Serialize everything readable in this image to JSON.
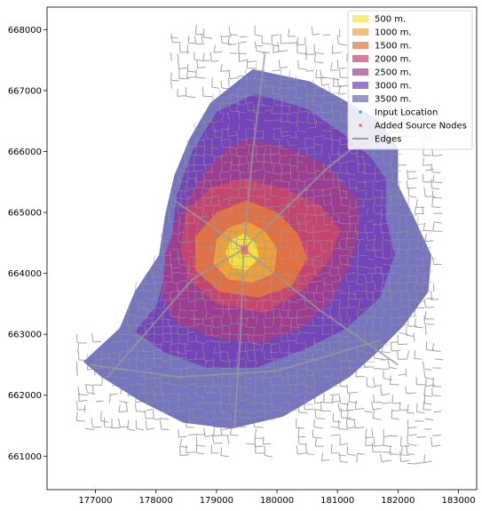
{
  "chart_data": {
    "type": "map",
    "title": "",
    "xlabel": "",
    "ylabel": "",
    "xlim": [
      176200,
      183300
    ],
    "ylim": [
      660450,
      668370
    ],
    "xticks": [
      177000,
      178000,
      179000,
      180000,
      181000,
      182000,
      183000
    ],
    "yticks": [
      661000,
      662000,
      663000,
      664000,
      665000,
      666000,
      667000,
      668000
    ],
    "grid": false,
    "legend_position": "top-right",
    "input_location": {
      "x": 179450,
      "y": 664400,
      "color": "#17becf"
    },
    "isochrones": [
      {
        "name": "3500 m.",
        "color": "#6a6ab8",
        "polygon": [
          [
            179600,
            667350
          ],
          [
            180550,
            667150
          ],
          [
            181100,
            666850
          ],
          [
            181700,
            666500
          ],
          [
            182000,
            666050
          ],
          [
            182000,
            665450
          ],
          [
            182250,
            664950
          ],
          [
            182550,
            664300
          ],
          [
            182500,
            663700
          ],
          [
            182100,
            663150
          ],
          [
            181650,
            662700
          ],
          [
            181200,
            662300
          ],
          [
            180700,
            662000
          ],
          [
            180100,
            661650
          ],
          [
            179250,
            661450
          ],
          [
            178450,
            661550
          ],
          [
            177750,
            661900
          ],
          [
            177100,
            662300
          ],
          [
            176800,
            662550
          ],
          [
            177400,
            663100
          ],
          [
            177650,
            663700
          ],
          [
            178050,
            664300
          ],
          [
            178150,
            664950
          ],
          [
            178300,
            665600
          ],
          [
            178550,
            666200
          ],
          [
            178900,
            666800
          ]
        ]
      },
      {
        "name": "3000 m.",
        "color": "#7440b8",
        "polygon": [
          [
            179650,
            666950
          ],
          [
            180500,
            666700
          ],
          [
            181150,
            666250
          ],
          [
            181550,
            665900
          ],
          [
            181800,
            665550
          ],
          [
            181800,
            664900
          ],
          [
            181950,
            664300
          ],
          [
            181700,
            663600
          ],
          [
            181150,
            663100
          ],
          [
            180450,
            662750
          ],
          [
            179650,
            662450
          ],
          [
            178850,
            662450
          ],
          [
            178150,
            662700
          ],
          [
            177650,
            663050
          ],
          [
            178000,
            663450
          ],
          [
            178150,
            663950
          ],
          [
            178250,
            664550
          ],
          [
            178350,
            665300
          ],
          [
            178600,
            666000
          ],
          [
            179000,
            666650
          ]
        ]
      },
      {
        "name": "2500 m.",
        "color": "#a13d8e",
        "polygon": [
          [
            179500,
            666200
          ],
          [
            180250,
            666050
          ],
          [
            180850,
            665750
          ],
          [
            181350,
            665200
          ],
          [
            181350,
            664650
          ],
          [
            181200,
            664100
          ],
          [
            180900,
            663550
          ],
          [
            180400,
            663100
          ],
          [
            179700,
            662850
          ],
          [
            178950,
            662950
          ],
          [
            178300,
            663200
          ],
          [
            178100,
            663700
          ],
          [
            178150,
            664300
          ],
          [
            178350,
            664950
          ],
          [
            178800,
            665650
          ],
          [
            179150,
            666050
          ]
        ]
      },
      {
        "name": "2000 m.",
        "color": "#c8466e",
        "polygon": [
          [
            179450,
            665550
          ],
          [
            180100,
            665400
          ],
          [
            180750,
            665100
          ],
          [
            181050,
            664700
          ],
          [
            180850,
            664200
          ],
          [
            180450,
            663750
          ],
          [
            179800,
            663350
          ],
          [
            179000,
            663500
          ],
          [
            178550,
            663900
          ],
          [
            178400,
            664400
          ],
          [
            178500,
            665000
          ],
          [
            178900,
            665400
          ]
        ]
      },
      {
        "name": "1500 m.",
        "color": "#e4743f",
        "polygon": [
          [
            179500,
            665200
          ],
          [
            180000,
            665000
          ],
          [
            180350,
            664650
          ],
          [
            180500,
            664250
          ],
          [
            180250,
            663800
          ],
          [
            179700,
            663600
          ],
          [
            179050,
            663700
          ],
          [
            178650,
            664050
          ],
          [
            178650,
            664600
          ],
          [
            179000,
            665000
          ]
        ]
      },
      {
        "name": "1000 m.",
        "color": "#efa43a",
        "polygon": [
          [
            179500,
            664850
          ],
          [
            179800,
            664700
          ],
          [
            180000,
            664400
          ],
          [
            179950,
            664000
          ],
          [
            179600,
            663850
          ],
          [
            179200,
            663900
          ],
          [
            178950,
            664150
          ],
          [
            179000,
            664550
          ],
          [
            179200,
            664750
          ]
        ]
      },
      {
        "name": "500 m.",
        "color": "#f3e443",
        "polygon": [
          [
            179450,
            664650
          ],
          [
            179650,
            664500
          ],
          [
            179700,
            664250
          ],
          [
            179500,
            664050
          ],
          [
            179250,
            664100
          ],
          [
            179150,
            664350
          ],
          [
            179250,
            664550
          ]
        ]
      }
    ],
    "edges_color": "#999999",
    "source_nodes_color": "#f26b6b",
    "legend": [
      {
        "label": "500 m.",
        "kind": "patch",
        "color": "#f3e443"
      },
      {
        "label": "1000 m.",
        "kind": "patch",
        "color": "#efa43a"
      },
      {
        "label": "1500 m.",
        "kind": "patch",
        "color": "#e4743f"
      },
      {
        "label": "2000 m.",
        "kind": "patch",
        "color": "#c8466e"
      },
      {
        "label": "2500 m.",
        "kind": "patch",
        "color": "#a13d8e"
      },
      {
        "label": "3000 m.",
        "kind": "patch",
        "color": "#7440b8"
      },
      {
        "label": "3500 m.",
        "kind": "patch",
        "color": "#6a6ab8"
      },
      {
        "label": "Input Location",
        "kind": "dot",
        "color": "#17becf"
      },
      {
        "label": "Added Source Nodes",
        "kind": "dot",
        "color": "#f26b6b"
      },
      {
        "label": "Edges",
        "kind": "line",
        "color": "#999999"
      }
    ]
  }
}
